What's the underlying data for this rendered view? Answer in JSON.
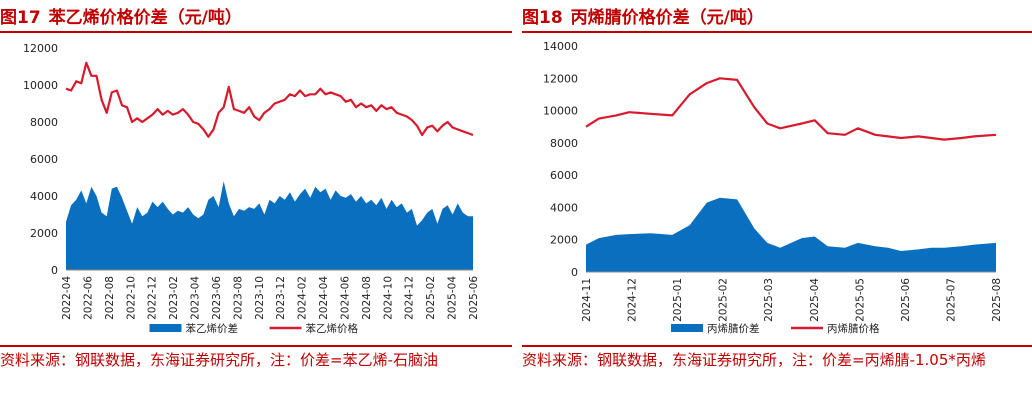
{
  "left": {
    "figno": "图17",
    "title": "苯乙烯价格价差（元/吨）",
    "source": "资料来源：钢联数据，东海证券研究所，注：价差=苯乙烯-石脑油",
    "chart_data": {
      "type": "line",
      "ylim": [
        0,
        12000
      ],
      "yticks": [
        "0",
        "2000",
        "4000",
        "6000",
        "8000",
        "10000",
        "12000"
      ],
      "xticks": [
        "2022-04",
        "2022-06",
        "2022-08",
        "2022-10",
        "2022-12",
        "2023-02",
        "2023-04",
        "2023-06",
        "2023-08",
        "2023-10",
        "2023-12",
        "2024-02",
        "2024-04",
        "2024-06",
        "2024-08",
        "2024-10",
        "2024-12",
        "2025-02",
        "2025-04",
        "2025-06"
      ],
      "x_span": [
        0,
        40
      ],
      "legend_position": "bottom",
      "series": [
        {
          "name": "苯乙烯价差",
          "kind": "area",
          "color": "#0b6fbf",
          "x": [
            0,
            0.5,
            1,
            1.5,
            2,
            2.5,
            3,
            3.5,
            4,
            4.5,
            5,
            5.5,
            6,
            6.5,
            7,
            7.5,
            8,
            8.5,
            9,
            9.5,
            10,
            10.5,
            11,
            11.5,
            12,
            12.5,
            13,
            13.5,
            14,
            14.5,
            15,
            15.5,
            16,
            16.5,
            17,
            17.5,
            18,
            18.5,
            19,
            19.5,
            20,
            20.5,
            21,
            21.5,
            22,
            22.5,
            23,
            23.5,
            24,
            24.5,
            25,
            25.5,
            26,
            26.5,
            27,
            27.5,
            28,
            28.5,
            29,
            29.5,
            30,
            30.5,
            31,
            31.5,
            32,
            32.5,
            33,
            33.5,
            34,
            34.5,
            35,
            35.5,
            36,
            36.5,
            37,
            37.5,
            38,
            38.5,
            39,
            39.5,
            40
          ],
          "y": [
            2600,
            3500,
            3800,
            4300,
            3600,
            4500,
            4000,
            3100,
            2900,
            4400,
            4500,
            3900,
            3200,
            2500,
            3400,
            2900,
            3100,
            3700,
            3400,
            3700,
            3300,
            3000,
            3200,
            3100,
            3400,
            3000,
            2800,
            3000,
            3800,
            4000,
            3400,
            4800,
            3600,
            2900,
            3300,
            3200,
            3400,
            3300,
            3600,
            3000,
            3800,
            3600,
            4000,
            3800,
            4200,
            3700,
            4100,
            4400,
            3900,
            4500,
            4200,
            4400,
            3800,
            4300,
            4000,
            3900,
            4100,
            3700,
            4000,
            3600,
            3800,
            3500,
            3900,
            3300,
            3800,
            3400,
            3600,
            3100,
            3300,
            2400,
            2700,
            3100,
            3300,
            2500,
            3300,
            3500,
            3000,
            3600,
            3100,
            2900,
            2900
          ]
        },
        {
          "name": "苯乙烯价格",
          "kind": "line",
          "color": "#d71a2c",
          "x": [
            0,
            0.5,
            1,
            1.5,
            2,
            2.5,
            3,
            3.5,
            4,
            4.5,
            5,
            5.5,
            6,
            6.5,
            7,
            7.5,
            8,
            8.5,
            9,
            9.5,
            10,
            10.5,
            11,
            11.5,
            12,
            12.5,
            13,
            13.5,
            14,
            14.5,
            15,
            15.5,
            16,
            16.5,
            17,
            17.5,
            18,
            18.5,
            19,
            19.5,
            20,
            20.5,
            21,
            21.5,
            22,
            22.5,
            23,
            23.5,
            24,
            24.5,
            25,
            25.5,
            26,
            26.5,
            27,
            27.5,
            28,
            28.5,
            29,
            29.5,
            30,
            30.5,
            31,
            31.5,
            32,
            32.5,
            33,
            33.5,
            34,
            34.5,
            35,
            35.5,
            36,
            36.5,
            37,
            37.5,
            38,
            38.5,
            39,
            39.5,
            40
          ],
          "y": [
            9800,
            9700,
            10200,
            10100,
            11200,
            10500,
            10500,
            9200,
            8500,
            9600,
            9700,
            8900,
            8800,
            8000,
            8200,
            8000,
            8200,
            8400,
            8700,
            8400,
            8600,
            8400,
            8500,
            8700,
            8400,
            8000,
            7900,
            7600,
            7200,
            7600,
            8500,
            8800,
            9900,
            8700,
            8600,
            8500,
            8800,
            8300,
            8100,
            8500,
            8700,
            9000,
            9100,
            9200,
            9500,
            9400,
            9700,
            9400,
            9500,
            9500,
            9800,
            9500,
            9600,
            9500,
            9400,
            9100,
            9200,
            8800,
            9000,
            8800,
            8900,
            8600,
            8900,
            8700,
            8800,
            8500,
            8400,
            8300,
            8100,
            7800,
            7300,
            7700,
            7800,
            7500,
            7800,
            8000,
            7700,
            7600,
            7500,
            7400,
            7300
          ]
        }
      ]
    }
  },
  "right": {
    "figno": "图18",
    "title": "丙烯腈价格价差（元/吨）",
    "source": "资料来源：钢联数据，东海证券研究所，注：价差=丙烯腈-1.05*丙烯",
    "chart_data": {
      "type": "line",
      "ylim": [
        0,
        14000
      ],
      "yticks": [
        "0",
        "2000",
        "4000",
        "6000",
        "8000",
        "10000",
        "12000",
        "14000"
      ],
      "xticks": [
        "2024-11",
        "2024-12",
        "2025-01",
        "2025-02",
        "2025-03",
        "2025-04",
        "2025-05",
        "2025-06",
        "2025-07",
        "2025-08"
      ],
      "x_span": [
        0,
        9.5
      ],
      "legend_position": "bottom",
      "series": [
        {
          "name": "丙烯腈价差",
          "kind": "area",
          "color": "#0b6fbf",
          "x": [
            0,
            0.3,
            0.7,
            1,
            1.5,
            2,
            2.4,
            2.8,
            3.1,
            3.5,
            3.9,
            4.2,
            4.5,
            5,
            5.3,
            5.6,
            6,
            6.3,
            6.7,
            7,
            7.3,
            7.7,
            8,
            8.3,
            8.7,
            9,
            9.5
          ],
          "y": [
            1700,
            2100,
            2300,
            2350,
            2400,
            2300,
            2900,
            4300,
            4600,
            4500,
            2700,
            1800,
            1500,
            2100,
            2200,
            1600,
            1500,
            1800,
            1600,
            1500,
            1300,
            1400,
            1500,
            1500,
            1600,
            1700,
            1800
          ]
        },
        {
          "name": "丙烯腈价格",
          "kind": "line",
          "color": "#d71a2c",
          "x": [
            0,
            0.3,
            0.7,
            1,
            1.5,
            2,
            2.4,
            2.8,
            3.1,
            3.5,
            3.9,
            4.2,
            4.5,
            5,
            5.3,
            5.6,
            6,
            6.3,
            6.7,
            7,
            7.3,
            7.7,
            8,
            8.3,
            8.7,
            9,
            9.5
          ],
          "y": [
            9000,
            9500,
            9700,
            9900,
            9800,
            9700,
            11000,
            11700,
            12000,
            11900,
            10200,
            9200,
            8900,
            9200,
            9400,
            8600,
            8500,
            8900,
            8500,
            8400,
            8300,
            8400,
            8300,
            8200,
            8300,
            8400,
            8500
          ]
        }
      ]
    }
  }
}
